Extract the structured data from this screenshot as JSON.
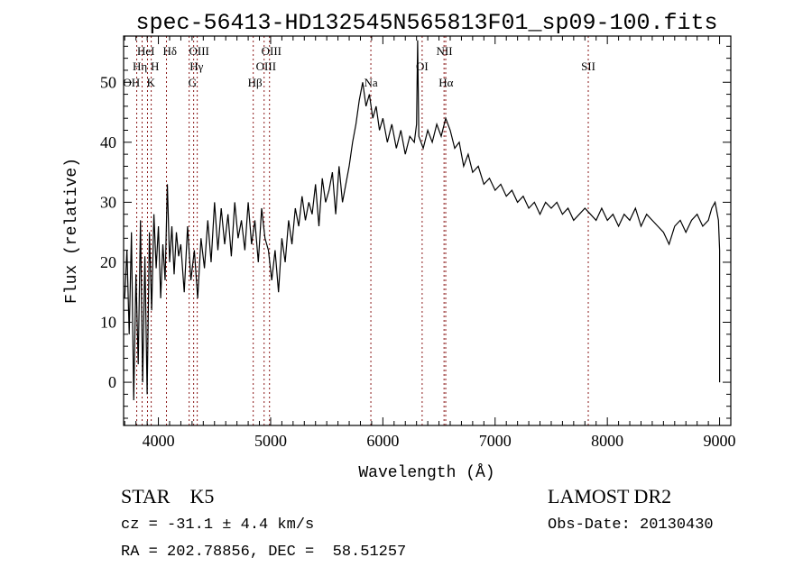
{
  "chart_data": {
    "type": "line",
    "title": "spec-56413-HD132545N565813F01_sp09-100.fits",
    "xlabel": "Wavelength (Å)",
    "ylabel": "Flux (relative)",
    "xlim": [
      3690,
      9100
    ],
    "ylim": [
      -7.2,
      57.7
    ],
    "xticks": [
      4000,
      5000,
      6000,
      7000,
      8000,
      9000
    ],
    "yticks": [
      0,
      10,
      20,
      30,
      40,
      50
    ],
    "grid": false,
    "series": [
      {
        "name": "spectrum",
        "x": [
          3700,
          3720,
          3740,
          3760,
          3780,
          3800,
          3820,
          3840,
          3860,
          3880,
          3900,
          3920,
          3940,
          3960,
          3980,
          4000,
          4020,
          4040,
          4060,
          4080,
          4100,
          4120,
          4140,
          4160,
          4180,
          4200,
          4230,
          4260,
          4290,
          4320,
          4350,
          4380,
          4410,
          4440,
          4470,
          4500,
          4530,
          4560,
          4590,
          4620,
          4650,
          4680,
          4710,
          4740,
          4770,
          4800,
          4830,
          4860,
          4890,
          4920,
          4950,
          4980,
          5010,
          5040,
          5070,
          5100,
          5130,
          5160,
          5190,
          5220,
          5250,
          5280,
          5310,
          5340,
          5370,
          5400,
          5430,
          5460,
          5490,
          5520,
          5550,
          5580,
          5610,
          5640,
          5670,
          5700,
          5730,
          5760,
          5790,
          5820,
          5850,
          5880,
          5910,
          5940,
          5970,
          6000,
          6040,
          6080,
          6120,
          6160,
          6200,
          6240,
          6280,
          6300,
          6310,
          6320,
          6360,
          6400,
          6440,
          6480,
          6520,
          6560,
          6600,
          6640,
          6680,
          6720,
          6760,
          6800,
          6850,
          6900,
          6950,
          7000,
          7050,
          7100,
          7150,
          7200,
          7250,
          7300,
          7350,
          7400,
          7450,
          7500,
          7550,
          7600,
          7650,
          7700,
          7750,
          7800,
          7850,
          7900,
          7950,
          8000,
          8050,
          8100,
          8150,
          8200,
          8250,
          8300,
          8350,
          8400,
          8450,
          8500,
          8550,
          8600,
          8650,
          8700,
          8750,
          8800,
          8850,
          8900,
          8930,
          8960,
          8990,
          9000,
          9000
        ],
        "y": [
          14,
          22,
          8,
          25,
          -3,
          18,
          3,
          27,
          0,
          21,
          -2,
          25,
          12,
          28,
          19,
          26,
          14,
          23,
          17,
          33,
          20,
          26,
          18,
          25,
          21,
          23,
          15,
          26,
          17,
          22,
          14,
          24,
          19,
          27,
          20,
          30,
          22,
          29,
          23,
          28,
          21,
          30,
          24,
          27,
          22,
          30,
          23,
          27,
          20,
          29,
          24,
          22,
          17,
          22,
          15,
          24,
          20,
          27,
          23,
          29,
          26,
          31,
          27,
          30,
          28,
          33,
          26,
          34,
          30,
          32,
          35,
          28,
          36,
          30,
          33,
          36,
          40,
          43,
          47,
          50,
          46,
          48,
          44,
          46,
          42,
          44,
          40,
          43,
          39,
          42,
          38,
          41,
          40,
          43,
          57,
          41,
          39,
          42,
          40,
          43,
          41,
          44,
          42,
          39,
          40,
          36,
          38,
          35,
          36,
          33,
          34,
          32,
          33,
          31,
          32,
          30,
          31,
          29,
          30,
          28,
          30,
          29,
          30,
          28,
          29,
          27,
          28,
          29,
          28,
          27,
          29,
          27,
          28,
          26,
          28,
          27,
          29,
          26,
          28,
          27,
          26,
          25,
          23,
          26,
          27,
          25,
          27,
          28,
          26,
          27,
          29,
          30,
          27,
          22,
          0
        ]
      }
    ],
    "spectral_lines": [
      {
        "label": "Hη",
        "wavelength": 3835,
        "row": 2
      },
      {
        "label": "HeI",
        "wavelength": 3889,
        "row": 1
      },
      {
        "label": "K",
        "wavelength": 3934,
        "row": 3
      },
      {
        "label": "H",
        "wavelength": 3969,
        "row": 2
      },
      {
        "label": "OH",
        "wavelength": 3760,
        "row": 3
      },
      {
        "label": "Hδ",
        "wavelength": 4102,
        "row": 1
      },
      {
        "label": "G",
        "wavelength": 4304,
        "row": 3
      },
      {
        "label": "Hγ",
        "wavelength": 4340,
        "row": 2
      },
      {
        "label": "OIII",
        "wavelength": 4363,
        "row": 1
      },
      {
        "label": "Hβ",
        "wavelength": 4861,
        "row": 3
      },
      {
        "label": "OIII",
        "wavelength": 4959,
        "row": 2
      },
      {
        "label": "OIII",
        "wavelength": 5007,
        "row": 1
      },
      {
        "label": "Na",
        "wavelength": 5893,
        "row": 3
      },
      {
        "label": "OI",
        "wavelength": 6350,
        "row": 2
      },
      {
        "label": "Hα",
        "wavelength": 6563,
        "row": 3
      },
      {
        "label": "NII",
        "wavelength": 6548,
        "row": 1
      },
      {
        "label": "SII",
        "wavelength": 7830,
        "row": 2
      }
    ],
    "line_wavelengths_drawn": [
      3807,
      3855,
      3903,
      3936,
      4072,
      4274,
      4314,
      4346,
      4845,
      4942,
      4990,
      5893,
      6350,
      6545,
      6560,
      7830
    ]
  },
  "info": {
    "object_class": "STAR    K5",
    "cz": "cz = -31.1 ± 4.4 km/s",
    "coords": "RA = 202.78856, DEC =  58.51257",
    "survey": "LAMOST DR2",
    "obs_date": "Obs-Date: 20130430"
  }
}
